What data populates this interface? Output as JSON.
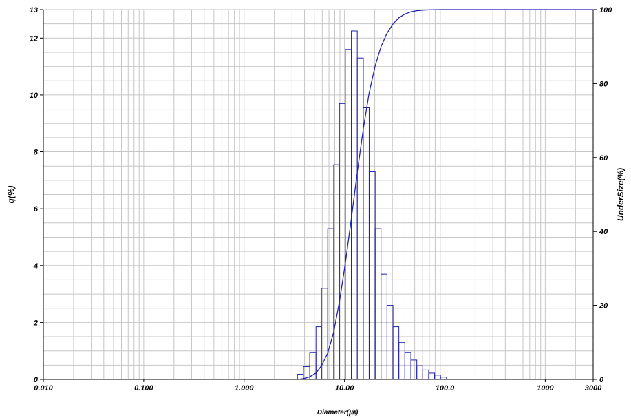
{
  "chart_data": {
    "type": "bar",
    "xlabel": "Diameter(㎛)",
    "ylabel": "q(%)",
    "y2label": "UnderSize(%)",
    "x_scale": "log",
    "xlim": [
      0.01,
      3000
    ],
    "ylim": [
      0,
      13
    ],
    "y2lim": [
      0,
      100
    ],
    "grid": true,
    "x_ticks": [
      {
        "v": 0.01,
        "label": "0.010"
      },
      {
        "v": 0.1,
        "label": "0.100"
      },
      {
        "v": 1,
        "label": "1.000"
      },
      {
        "v": 10,
        "label": "10.00"
      },
      {
        "v": 100,
        "label": "100.0"
      },
      {
        "v": 1000,
        "label": "1000"
      },
      {
        "v": 3000,
        "label": "3000"
      }
    ],
    "y_ticks": [
      0,
      2,
      4,
      6,
      8,
      10,
      12,
      13
    ],
    "y2_ticks": [
      0,
      20,
      40,
      60,
      80,
      100
    ],
    "bar_color": "#2020b0",
    "line_color": "#2020b0",
    "histogram": {
      "name": "q(%)",
      "bin_edges": [
        3.4,
        3.9,
        4.5,
        5.2,
        5.9,
        6.8,
        7.8,
        8.9,
        10.2,
        11.7,
        13.4,
        15.4,
        17.6,
        20.2,
        23.1,
        26.5,
        30.4,
        34.8,
        39.9,
        45.8,
        52.5,
        60.1,
        68.9,
        79.0,
        90.5,
        103.7
      ],
      "values": [
        0.18,
        0.45,
        0.95,
        1.85,
        3.2,
        5.3,
        7.55,
        9.7,
        11.6,
        12.25,
        11.3,
        9.55,
        7.3,
        5.3,
        3.7,
        2.6,
        1.85,
        1.3,
        0.95,
        0.68,
        0.48,
        0.33,
        0.22,
        0.15,
        0.08
      ]
    },
    "cumulative": {
      "name": "UnderSize(%)",
      "x": [
        3.4,
        3.9,
        4.5,
        5.2,
        5.9,
        6.8,
        7.8,
        8.9,
        10.2,
        11.7,
        13.4,
        15.4,
        17.6,
        20.2,
        23.1,
        26.5,
        30.4,
        34.8,
        39.9,
        45.8,
        52.5,
        60.1,
        68.9,
        79.0,
        90.5,
        103.7,
        3000
      ],
      "y": [
        0,
        0.2,
        0.7,
        1.7,
        3.7,
        7.1,
        12.8,
        21.0,
        31.5,
        43.5,
        56.0,
        67.8,
        77.5,
        84.8,
        90.0,
        93.6,
        96.1,
        97.8,
        98.8,
        99.4,
        99.7,
        99.85,
        99.93,
        99.97,
        99.99,
        100,
        100
      ]
    }
  }
}
